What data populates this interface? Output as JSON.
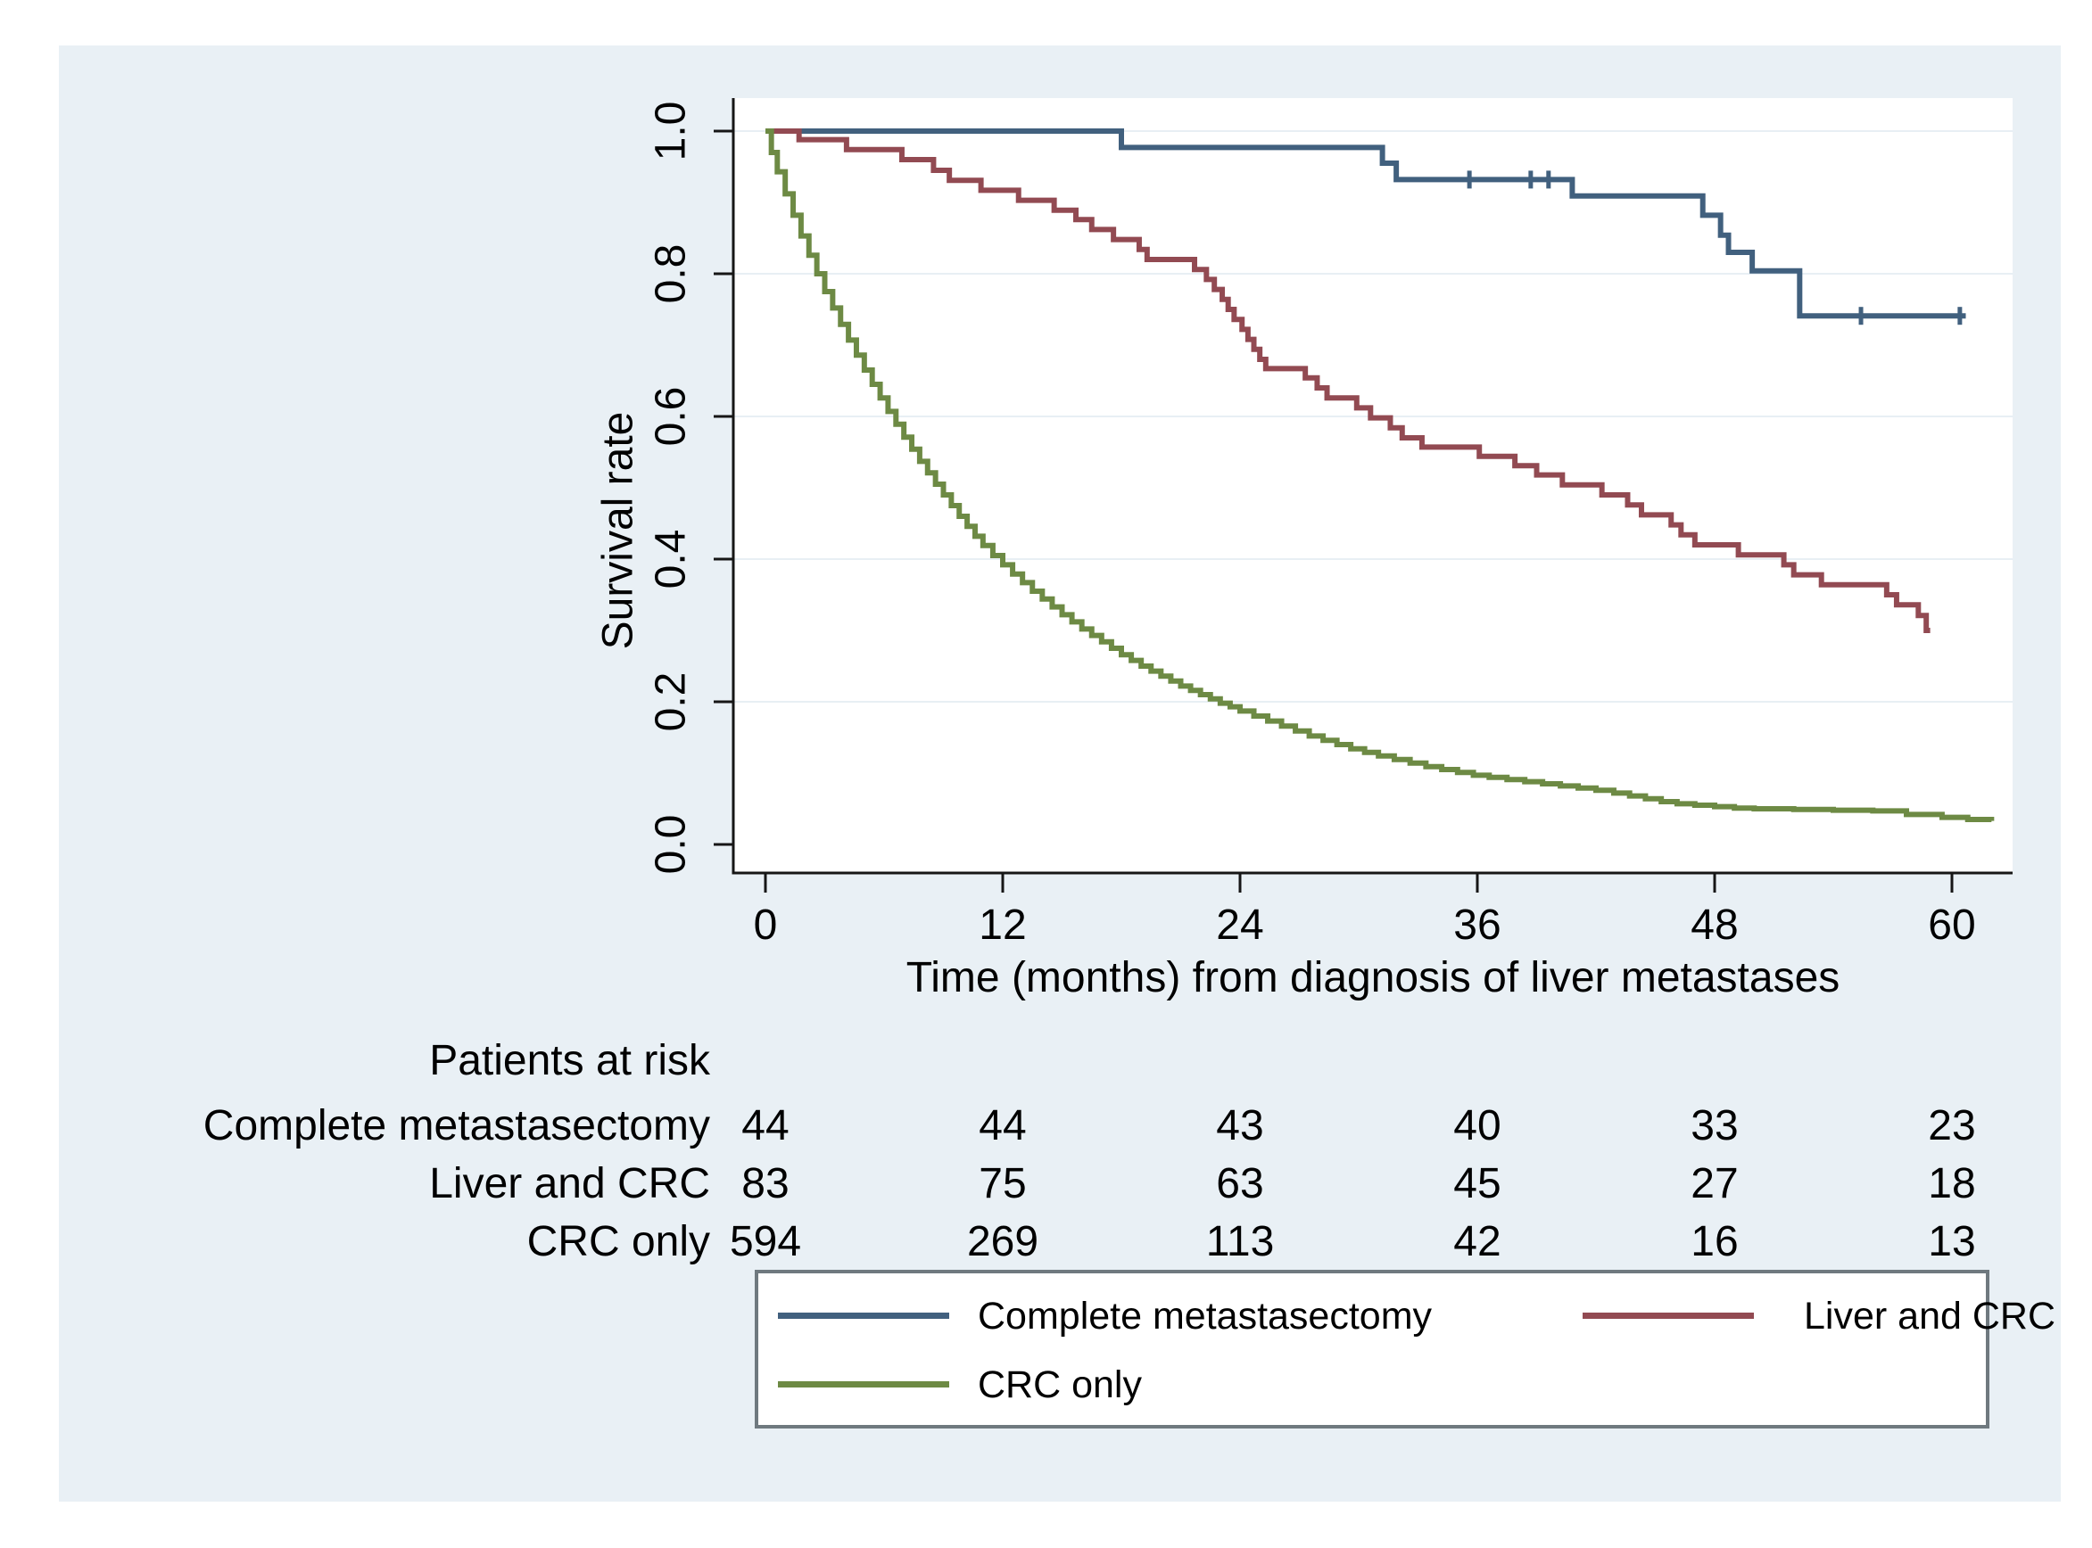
{
  "figure": {
    "background": "#ffffff",
    "panel_background": "#e9f0f5",
    "plot_background": "#ffffff",
    "grid_color": "#e8eff4",
    "axis_color": "#161616",
    "legend_border_color": "#6f797f"
  },
  "chart_data": {
    "type": "line",
    "subtype": "kaplan-meier-step",
    "title": "",
    "xlabel": "Time (months) from diagnosis of liver metastases",
    "ylabel": "Survival rate",
    "xlim": [
      0,
      63
    ],
    "ylim": [
      0.0,
      1.0
    ],
    "x_ticks": [
      0,
      12,
      24,
      36,
      48,
      60
    ],
    "y_ticks": [
      "0.0",
      "0.2",
      "0.4",
      "0.6",
      "0.8",
      "1.0"
    ],
    "grid": "horizontal",
    "legend_position": "bottom",
    "series": [
      {
        "name": "Complete metastasectomy",
        "color": "#41607e",
        "end_month": 60.7,
        "points": [
          [
            0,
            1.0
          ],
          [
            18.0,
            0.977
          ],
          [
            31.2,
            0.955
          ],
          [
            31.9,
            0.932
          ],
          [
            40.8,
            0.909
          ],
          [
            47.4,
            0.882
          ],
          [
            48.3,
            0.854
          ],
          [
            48.7,
            0.83
          ],
          [
            49.9,
            0.804
          ],
          [
            52.3,
            0.741
          ]
        ],
        "censor_ticks": [
          [
            35.6,
            0.932
          ],
          [
            38.7,
            0.932
          ],
          [
            39.6,
            0.932
          ],
          [
            55.4,
            0.741
          ],
          [
            60.4,
            0.741
          ]
        ]
      },
      {
        "name": "Liver and CRC",
        "color": "#924a52",
        "end_month": 58.9,
        "points": [
          [
            0,
            1.0
          ],
          [
            1.7,
            0.988
          ],
          [
            4.1,
            0.974
          ],
          [
            6.9,
            0.96
          ],
          [
            8.5,
            0.945
          ],
          [
            9.3,
            0.931
          ],
          [
            10.9,
            0.917
          ],
          [
            12.8,
            0.903
          ],
          [
            14.6,
            0.889
          ],
          [
            15.7,
            0.876
          ],
          [
            16.5,
            0.862
          ],
          [
            17.6,
            0.848
          ],
          [
            18.9,
            0.834
          ],
          [
            19.3,
            0.82
          ],
          [
            21.7,
            0.806
          ],
          [
            22.3,
            0.792
          ],
          [
            22.7,
            0.778
          ],
          [
            23.1,
            0.764
          ],
          [
            23.4,
            0.75
          ],
          [
            23.7,
            0.736
          ],
          [
            24.1,
            0.722
          ],
          [
            24.4,
            0.708
          ],
          [
            24.7,
            0.694
          ],
          [
            25.0,
            0.68
          ],
          [
            25.3,
            0.667
          ],
          [
            27.3,
            0.654
          ],
          [
            27.9,
            0.64
          ],
          [
            28.4,
            0.626
          ],
          [
            29.9,
            0.612
          ],
          [
            30.6,
            0.598
          ],
          [
            31.6,
            0.584
          ],
          [
            32.2,
            0.57
          ],
          [
            33.2,
            0.557
          ],
          [
            36.1,
            0.544
          ],
          [
            37.9,
            0.531
          ],
          [
            39.0,
            0.518
          ],
          [
            40.3,
            0.504
          ],
          [
            42.3,
            0.49
          ],
          [
            43.6,
            0.476
          ],
          [
            44.3,
            0.462
          ],
          [
            45.8,
            0.448
          ],
          [
            46.3,
            0.434
          ],
          [
            47.0,
            0.42
          ],
          [
            49.2,
            0.406
          ],
          [
            51.5,
            0.392
          ],
          [
            52.0,
            0.378
          ],
          [
            53.4,
            0.364
          ],
          [
            56.7,
            0.35
          ],
          [
            57.2,
            0.336
          ],
          [
            58.3,
            0.321
          ],
          [
            58.7,
            0.3
          ]
        ],
        "censor_ticks": []
      },
      {
        "name": "CRC only",
        "color": "#6d8a44",
        "end_month": 62.0,
        "points": [
          [
            0,
            1.0
          ],
          [
            0.3,
            0.97
          ],
          [
            0.6,
            0.943
          ],
          [
            1,
            0.912
          ],
          [
            1.4,
            0.882
          ],
          [
            1.8,
            0.853
          ],
          [
            2.2,
            0.826
          ],
          [
            2.6,
            0.8
          ],
          [
            3,
            0.775
          ],
          [
            3.4,
            0.752
          ],
          [
            3.8,
            0.729
          ],
          [
            4.2,
            0.707
          ],
          [
            4.6,
            0.686
          ],
          [
            5,
            0.665
          ],
          [
            5.4,
            0.645
          ],
          [
            5.8,
            0.626
          ],
          [
            6.2,
            0.607
          ],
          [
            6.6,
            0.589
          ],
          [
            7,
            0.571
          ],
          [
            7.4,
            0.554
          ],
          [
            7.8,
            0.537
          ],
          [
            8.2,
            0.521
          ],
          [
            8.6,
            0.505
          ],
          [
            9,
            0.49
          ],
          [
            9.4,
            0.475
          ],
          [
            9.8,
            0.46
          ],
          [
            10.2,
            0.446
          ],
          [
            10.6,
            0.432
          ],
          [
            11,
            0.419
          ],
          [
            11.5,
            0.405
          ],
          [
            12,
            0.392
          ],
          [
            12.5,
            0.379
          ],
          [
            13,
            0.367
          ],
          [
            13.5,
            0.355
          ],
          [
            14,
            0.344
          ],
          [
            14.5,
            0.333
          ],
          [
            15,
            0.322
          ],
          [
            15.5,
            0.312
          ],
          [
            16,
            0.302
          ],
          [
            16.5,
            0.293
          ],
          [
            17,
            0.284
          ],
          [
            17.5,
            0.275
          ],
          [
            18,
            0.266
          ],
          [
            18.5,
            0.258
          ],
          [
            19,
            0.25
          ],
          [
            19.5,
            0.243
          ],
          [
            20,
            0.236
          ],
          [
            20.5,
            0.229
          ],
          [
            21,
            0.222
          ],
          [
            21.5,
            0.216
          ],
          [
            22,
            0.21
          ],
          [
            22.5,
            0.204
          ],
          [
            23,
            0.198
          ],
          [
            23.5,
            0.193
          ],
          [
            24,
            0.187
          ],
          [
            24.7,
            0.18
          ],
          [
            25.4,
            0.173
          ],
          [
            26.1,
            0.166
          ],
          [
            26.8,
            0.159
          ],
          [
            27.5,
            0.152
          ],
          [
            28.2,
            0.146
          ],
          [
            28.9,
            0.14
          ],
          [
            29.6,
            0.134
          ],
          [
            30.3,
            0.129
          ],
          [
            31,
            0.124
          ],
          [
            31.8,
            0.119
          ],
          [
            32.6,
            0.114
          ],
          [
            33.4,
            0.109
          ],
          [
            34.2,
            0.105
          ],
          [
            35,
            0.101
          ],
          [
            35.8,
            0.097
          ],
          [
            36.6,
            0.094
          ],
          [
            37.5,
            0.091
          ],
          [
            38.4,
            0.088
          ],
          [
            39.3,
            0.085
          ],
          [
            40.2,
            0.082
          ],
          [
            41.1,
            0.079
          ],
          [
            42,
            0.076
          ],
          [
            42.9,
            0.072
          ],
          [
            43.7,
            0.068
          ],
          [
            44.5,
            0.064
          ],
          [
            45.3,
            0.06
          ],
          [
            46.1,
            0.057
          ],
          [
            47,
            0.055
          ],
          [
            48,
            0.053
          ],
          [
            49,
            0.051
          ],
          [
            50,
            0.05
          ],
          [
            52,
            0.049
          ],
          [
            54,
            0.048
          ],
          [
            56,
            0.047
          ],
          [
            57.7,
            0.042
          ],
          [
            59.5,
            0.038
          ],
          [
            60.8,
            0.035
          ],
          [
            62,
            0.033
          ]
        ],
        "censor_ticks": []
      }
    ]
  },
  "risk_table": {
    "header": "Patients at risk",
    "time_points": [
      0,
      12,
      24,
      36,
      48,
      60
    ],
    "rows": [
      {
        "label": "Complete metastasectomy",
        "counts": [
          "44",
          "44",
          "43",
          "40",
          "33",
          "23"
        ]
      },
      {
        "label": "Liver and CRC",
        "counts": [
          "83",
          "75",
          "63",
          "45",
          "27",
          "18"
        ]
      },
      {
        "label": "CRC only",
        "counts": [
          "594",
          "269",
          "113",
          "42",
          "16",
          "13"
        ]
      }
    ]
  },
  "legend": {
    "items": [
      {
        "label": "Complete metastasectomy",
        "color": "#41607e"
      },
      {
        "label": "Liver and CRC",
        "color": "#924a52"
      },
      {
        "label": "CRC only",
        "color": "#6d8a44"
      }
    ]
  }
}
